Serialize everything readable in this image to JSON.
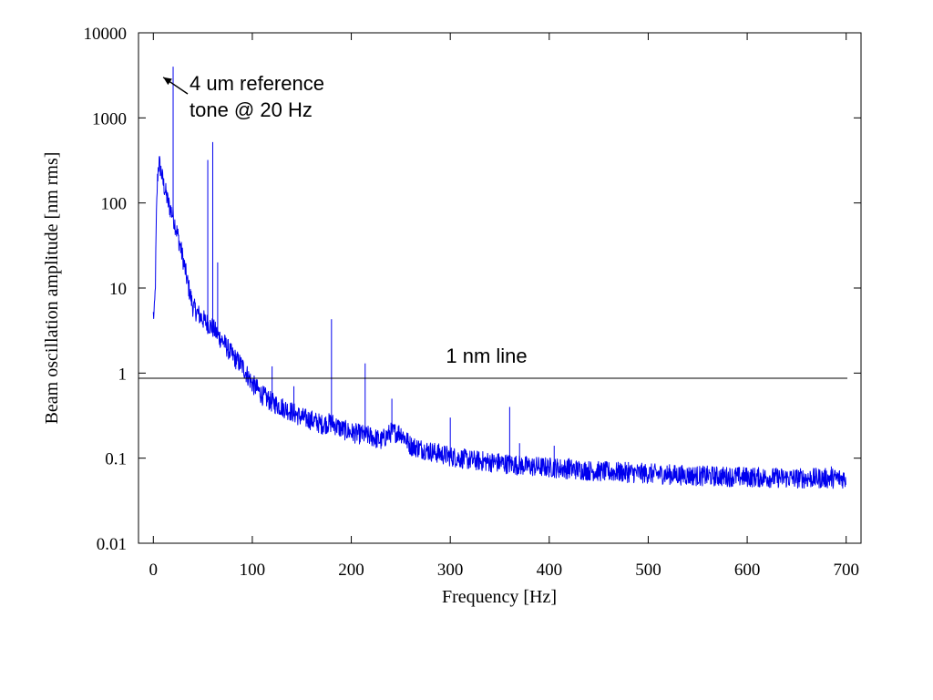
{
  "chart_data": {
    "type": "line",
    "title": "",
    "xlabel": "Frequency   [Hz]",
    "ylabel": "Beam oscillation amplitude  [nm rms]",
    "xlim": [
      -15,
      715
    ],
    "ylim": [
      0.01,
      10000
    ],
    "y_scale": "log",
    "grid": false,
    "x_ticks": [
      0,
      100,
      200,
      300,
      400,
      500,
      600,
      700
    ],
    "x_tick_labels": [
      "0",
      "100",
      "200",
      "300",
      "400",
      "500",
      "600",
      "700"
    ],
    "y_ticks": [
      0.01,
      0.1,
      1,
      10,
      100,
      1000,
      10000
    ],
    "y_tick_labels": [
      "0.01",
      "0.1",
      "1",
      "10",
      "100",
      "1000",
      "10000"
    ],
    "series": [
      {
        "color": "#0000ee",
        "x": [
          0,
          1,
          2,
          3,
          4,
          5,
          6,
          7,
          8,
          9,
          10,
          12,
          15,
          20,
          25,
          30,
          35,
          40,
          45,
          50,
          55,
          60,
          65,
          70,
          80,
          90,
          100,
          110,
          120,
          130,
          140,
          150,
          160,
          170,
          180,
          190,
          200,
          210,
          220,
          230,
          240,
          250,
          260,
          270,
          280,
          300,
          320,
          350,
          380,
          400,
          450,
          500,
          550,
          600,
          650,
          700
        ],
        "y": [
          4.8,
          5,
          10,
          60,
          170,
          260,
          300,
          260,
          230,
          200,
          170,
          140,
          100,
          70,
          40,
          22,
          11,
          6,
          5,
          4.3,
          3.8,
          3.4,
          2.8,
          2.4,
          1.6,
          1.2,
          0.75,
          0.55,
          0.45,
          0.4,
          0.35,
          0.3,
          0.28,
          0.25,
          0.26,
          0.22,
          0.2,
          0.19,
          0.18,
          0.16,
          0.2,
          0.2,
          0.14,
          0.13,
          0.12,
          0.105,
          0.095,
          0.088,
          0.08,
          0.078,
          0.07,
          0.066,
          0.062,
          0.06,
          0.058,
          0.058
        ]
      }
    ],
    "spikes": {
      "x": [
        20,
        55,
        60,
        65,
        120,
        142,
        180,
        214,
        241,
        300,
        360,
        370,
        405,
        420,
        480,
        540,
        685
      ],
      "y": [
        4000,
        320,
        520,
        20,
        1.2,
        0.7,
        4.3,
        1.3,
        0.5,
        0.3,
        0.4,
        0.15,
        0.14,
        0.1,
        0.09,
        0.07,
        0.08
      ]
    },
    "reference_line": {
      "y": 0.87,
      "label": "1 nm line"
    },
    "annotations": [
      {
        "lines": [
          "4 um reference",
          "tone @ 20 Hz"
        ],
        "arrow_to": [
          10,
          3000
        ]
      }
    ]
  }
}
